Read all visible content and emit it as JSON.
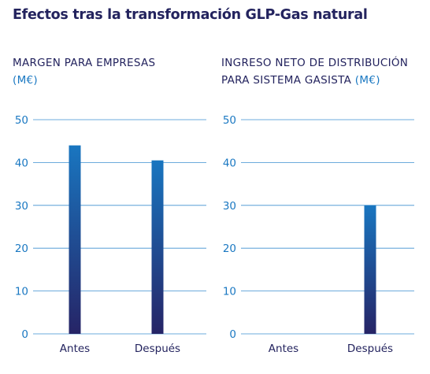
{
  "title": "Efectos tras la transformación GLP-Gas natural",
  "colors": {
    "navy": "#23235e",
    "blue": "#1a78c2",
    "grid": "#3d8fd0",
    "bar_top": "#1976c0",
    "bar_bottom": "#262466"
  },
  "chart_data": [
    {
      "type": "bar",
      "title_line1": "MARGEN PARA EMPRESAS",
      "title_line2": "",
      "unit": "(M€)",
      "categories": [
        "Antes",
        "Después"
      ],
      "values": [
        44,
        40.5
      ],
      "yticks": [
        "0",
        "10",
        "20",
        "30",
        "40",
        "50"
      ],
      "ylim": [
        0,
        50
      ],
      "grid": true
    },
    {
      "type": "bar",
      "title_line1": "INGRESO NETO DE DISTRIBUCIÓN",
      "title_line2": "PARA SISTEMA GASISTA",
      "unit": "(M€)",
      "categories": [
        "Antes",
        "Después"
      ],
      "values": [
        0,
        30
      ],
      "yticks": [
        "0",
        "10",
        "20",
        "30",
        "40",
        "50"
      ],
      "ylim": [
        0,
        50
      ],
      "grid": true
    }
  ]
}
